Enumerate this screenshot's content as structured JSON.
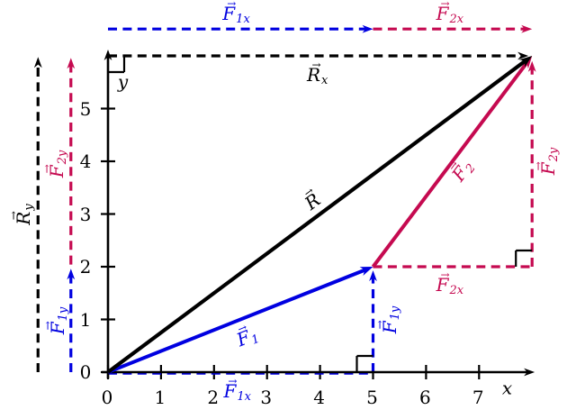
{
  "colors": {
    "blue": "#0000e0",
    "crimson": "#c50a50",
    "black": "#000000"
  },
  "chart_data": {
    "type": "vector-diagram",
    "title": "",
    "xlabel": "x",
    "ylabel": "y",
    "x_ticks": [
      0,
      1,
      2,
      3,
      4,
      5,
      6,
      7
    ],
    "y_ticks": [
      0,
      1,
      2,
      3,
      4,
      5
    ],
    "xlim": [
      0,
      8.1
    ],
    "ylim": [
      0,
      6.15
    ],
    "grid": false,
    "vectors_summary": {
      "F1": {
        "from": [
          0,
          0
        ],
        "to": [
          5,
          2
        ],
        "components": {
          "F1x": 5,
          "F1y": 2
        }
      },
      "F2": {
        "from": [
          5,
          2
        ],
        "to": [
          8,
          6
        ],
        "components": {
          "F2x": 3,
          "F2y": 4
        }
      },
      "R": {
        "from": [
          0,
          0
        ],
        "to": [
          8,
          6
        ],
        "components": {
          "Rx": 8,
          "Ry": 6
        }
      }
    },
    "arrows": [
      {
        "name": "f1x-top-dash",
        "color": "blue",
        "dash": true,
        "head": true,
        "width": 3.2,
        "from": [
          0,
          6.51
        ],
        "to": [
          5,
          6.51
        ]
      },
      {
        "name": "f2x-top-dash",
        "color": "crimson",
        "dash": true,
        "head": true,
        "width": 3.2,
        "from": [
          5,
          6.51
        ],
        "to": [
          8,
          6.51
        ]
      },
      {
        "name": "rx-top-dash",
        "color": "black",
        "dash": true,
        "head": true,
        "width": 3.2,
        "from": [
          0,
          6.0
        ],
        "to": [
          7.93,
          6.0
        ]
      },
      {
        "name": "ry-left-dash",
        "color": "black",
        "dash": true,
        "head": true,
        "width": 3.2,
        "from": [
          -1.32,
          0
        ],
        "to": [
          -1.32,
          5.98
        ]
      },
      {
        "name": "f1y-left-dash",
        "color": "blue",
        "dash": true,
        "head": true,
        "width": 3.2,
        "from": [
          -0.7,
          0
        ],
        "to": [
          -0.7,
          1.96
        ]
      },
      {
        "name": "f2y-left-dash",
        "color": "crimson",
        "dash": true,
        "head": true,
        "width": 3.2,
        "from": [
          -0.7,
          2.04
        ],
        "to": [
          -0.7,
          5.96
        ]
      },
      {
        "name": "f1x-axis-dash",
        "color": "blue",
        "dash": true,
        "head": false,
        "width": 3.2,
        "from": [
          0,
          -0.02
        ],
        "to": [
          5,
          -0.02
        ]
      },
      {
        "name": "f1y-mid-dash",
        "color": "blue",
        "dash": true,
        "head": true,
        "width": 3.2,
        "from": [
          5,
          0
        ],
        "to": [
          5,
          1.93
        ]
      },
      {
        "name": "f2x-mid-dash",
        "color": "crimson",
        "dash": true,
        "head": false,
        "width": 3.2,
        "from": [
          5,
          2
        ],
        "to": [
          8,
          2
        ]
      },
      {
        "name": "f2y-right-dash",
        "color": "crimson",
        "dash": true,
        "head": true,
        "width": 3.2,
        "from": [
          8,
          2
        ],
        "to": [
          8,
          5.9
        ]
      },
      {
        "name": "x-axis",
        "color": "black",
        "dash": false,
        "head": true,
        "width": 2.6,
        "from": [
          -0.12,
          0
        ],
        "to": [
          8.05,
          0
        ]
      },
      {
        "name": "y-axis",
        "color": "black",
        "dash": false,
        "head": true,
        "width": 2.6,
        "from": [
          0,
          -0.12
        ],
        "to": [
          0,
          6.12
        ]
      },
      {
        "name": "vector-F1",
        "color": "blue",
        "dash": false,
        "head": true,
        "width": 4,
        "from": [
          0,
          0
        ],
        "to": [
          5,
          2
        ]
      },
      {
        "name": "vector-F2",
        "color": "crimson",
        "dash": false,
        "head": true,
        "width": 4,
        "from": [
          5,
          2
        ],
        "to": [
          8,
          6
        ]
      },
      {
        "name": "vector-R",
        "color": "black",
        "dash": false,
        "head": true,
        "width": 4.2,
        "from": [
          0,
          0
        ],
        "to": [
          8,
          6
        ]
      }
    ],
    "right_angle_markers": [
      {
        "name": "right-angle-y-axis-rx",
        "at": [
          0,
          6
        ],
        "sx": 1,
        "sy": -1
      },
      {
        "name": "right-angle-x5",
        "at": [
          5,
          0
        ],
        "sx": -1,
        "sy": 1
      },
      {
        "name": "right-angle-x8-y2",
        "at": [
          8,
          2
        ],
        "sx": -1,
        "sy": 1
      }
    ],
    "labels": [
      {
        "name": "label-f1x-top",
        "text": "F",
        "sub": "1x",
        "vec": true,
        "color": "blue",
        "x": 2.42,
        "y": 6.84,
        "rot": 0
      },
      {
        "name": "label-f2x-top",
        "text": "F",
        "sub": "2x",
        "vec": true,
        "color": "crimson",
        "x": 6.45,
        "y": 6.84,
        "rot": 0
      },
      {
        "name": "label-rx-top",
        "text": "R",
        "sub": "x",
        "vec": true,
        "color": "black",
        "x": 3.95,
        "y": 5.67,
        "rot": 0
      },
      {
        "name": "label-y-axis",
        "text": "y",
        "sub": "",
        "vec": false,
        "color": "black",
        "x": 0.28,
        "y": 5.5,
        "rot": 0
      },
      {
        "name": "label-x-axis",
        "text": "x",
        "sub": "",
        "vec": false,
        "color": "black",
        "x": 7.53,
        "y": -0.3,
        "rot": 0
      },
      {
        "name": "label-ry-left",
        "text": "R",
        "sub": "y",
        "vec": true,
        "color": "black",
        "x": -1.63,
        "y": 3.0,
        "rot": -90
      },
      {
        "name": "label-f2y-left",
        "text": "F",
        "sub": "2y",
        "vec": true,
        "color": "crimson",
        "x": -1.0,
        "y": 3.95,
        "rot": -90
      },
      {
        "name": "label-f1y-left",
        "text": "F",
        "sub": "1y",
        "vec": true,
        "color": "blue",
        "x": -0.98,
        "y": 0.97,
        "rot": -90
      },
      {
        "name": "label-F1",
        "text": "F",
        "sub": "1",
        "vec": true,
        "color": "blue",
        "x": 2.62,
        "y": 0.7,
        "rot": -21.6
      },
      {
        "name": "label-F2",
        "text": "F",
        "sub": "2",
        "vec": true,
        "color": "crimson",
        "x": 6.65,
        "y": 3.84,
        "rot": -53
      },
      {
        "name": "label-R",
        "text": "R",
        "sub": "",
        "vec": true,
        "color": "black",
        "x": 3.84,
        "y": 3.26,
        "rot": -36.7
      },
      {
        "name": "label-f2x-mid",
        "text": "F",
        "sub": "2x",
        "vec": true,
        "color": "crimson",
        "x": 6.45,
        "y": 1.7,
        "rot": 0
      },
      {
        "name": "label-f2y-right",
        "text": "F",
        "sub": "2y",
        "vec": true,
        "color": "crimson",
        "x": 8.26,
        "y": 4.0,
        "rot": -90
      },
      {
        "name": "label-f1y-mid",
        "text": "F",
        "sub": "1y",
        "vec": true,
        "color": "blue",
        "x": 5.28,
        "y": 1.0,
        "rot": -90
      },
      {
        "name": "label-f1x-axis",
        "text": "F",
        "sub": "1x",
        "vec": true,
        "color": "blue",
        "x": 2.44,
        "y": -0.33,
        "rot": 0
      }
    ]
  }
}
